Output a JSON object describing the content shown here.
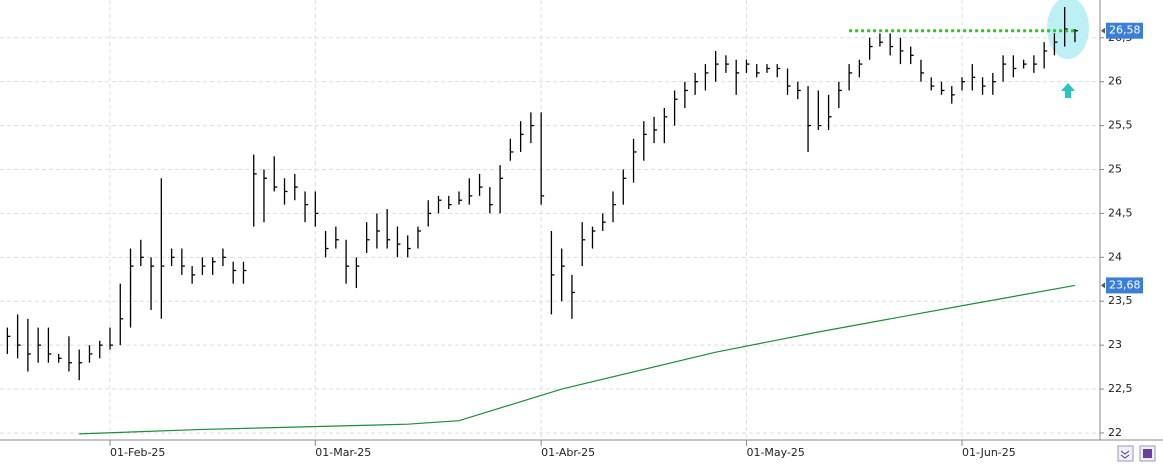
{
  "chart_data": {
    "type": "ohlc",
    "bars": [
      [
        23.3,
        22.9,
        23.0
      ],
      [
        23.2,
        22.9,
        23.1
      ],
      [
        23.35,
        22.85,
        23.0
      ],
      [
        23.3,
        22.7,
        22.9
      ],
      [
        23.2,
        22.8,
        23.0
      ],
      [
        23.2,
        22.8,
        22.9
      ],
      [
        22.9,
        22.8,
        22.85
      ],
      [
        23.1,
        22.7,
        22.8
      ],
      [
        22.95,
        22.6,
        22.8
      ],
      [
        23.0,
        22.8,
        22.9
      ],
      [
        23.05,
        22.85,
        23.0
      ],
      [
        23.2,
        22.95,
        23.0
      ],
      [
        23.7,
        23.0,
        23.3
      ],
      [
        24.1,
        23.2,
        23.9
      ],
      [
        24.2,
        23.9,
        24.0
      ],
      [
        24.0,
        23.4,
        23.9
      ],
      [
        24.9,
        23.3,
        23.9
      ],
      [
        24.1,
        23.9,
        24.0
      ],
      [
        24.1,
        23.8,
        23.9
      ],
      [
        23.9,
        23.7,
        23.8
      ],
      [
        24.0,
        23.8,
        23.9
      ],
      [
        24.0,
        23.8,
        23.95
      ],
      [
        24.1,
        23.9,
        24.0
      ],
      [
        23.95,
        23.7,
        23.85
      ],
      [
        23.95,
        23.7,
        23.85
      ],
      [
        25.17,
        24.35,
        24.95
      ],
      [
        25.0,
        24.4,
        24.9
      ],
      [
        25.15,
        24.75,
        24.8
      ],
      [
        24.9,
        24.6,
        24.75
      ],
      [
        24.95,
        24.65,
        24.8
      ],
      [
        24.75,
        24.4,
        24.6
      ],
      [
        24.75,
        24.35,
        24.5
      ],
      [
        24.3,
        24.0,
        24.1
      ],
      [
        24.35,
        24.1,
        24.2
      ],
      [
        24.2,
        23.7,
        23.9
      ],
      [
        24.0,
        23.65,
        23.9
      ],
      [
        24.4,
        24.05,
        24.2
      ],
      [
        24.5,
        24.1,
        24.3
      ],
      [
        24.55,
        24.1,
        24.2
      ],
      [
        24.35,
        24.0,
        24.15
      ],
      [
        24.25,
        24.0,
        24.1
      ],
      [
        24.35,
        24.1,
        24.3
      ],
      [
        24.65,
        24.35,
        24.5
      ],
      [
        24.7,
        24.5,
        24.65
      ],
      [
        24.7,
        24.55,
        24.6
      ],
      [
        24.75,
        24.6,
        24.65
      ],
      [
        24.9,
        24.6,
        24.7
      ],
      [
        24.95,
        24.7,
        24.8
      ],
      [
        24.8,
        24.5,
        24.6
      ],
      [
        25.05,
        24.5,
        24.9
      ],
      [
        25.35,
        25.1,
        25.2
      ],
      [
        25.55,
        25.2,
        25.4
      ],
      [
        25.65,
        25.3,
        25.5
      ],
      [
        25.65,
        24.6,
        24.7
      ],
      [
        24.3,
        23.35,
        23.8
      ],
      [
        24.1,
        23.5,
        23.9
      ],
      [
        23.8,
        23.3,
        23.6
      ],
      [
        24.4,
        23.9,
        24.2
      ],
      [
        24.35,
        24.1,
        24.3
      ],
      [
        24.5,
        24.3,
        24.4
      ],
      [
        24.75,
        24.4,
        24.6
      ],
      [
        25.0,
        24.6,
        24.9
      ],
      [
        25.35,
        24.85,
        25.2
      ],
      [
        25.55,
        25.1,
        25.4
      ],
      [
        25.6,
        25.3,
        25.45
      ],
      [
        25.7,
        25.3,
        25.6
      ],
      [
        25.9,
        25.5,
        25.8
      ],
      [
        26.0,
        25.7,
        25.9
      ],
      [
        26.1,
        25.85,
        26.0
      ],
      [
        26.2,
        25.9,
        26.1
      ],
      [
        26.35,
        26.0,
        26.2
      ],
      [
        26.3,
        26.1,
        26.2
      ],
      [
        26.25,
        25.85,
        26.1
      ],
      [
        26.25,
        26.1,
        26.2
      ],
      [
        26.2,
        26.05,
        26.1
      ],
      [
        26.2,
        26.1,
        26.15
      ],
      [
        26.2,
        26.05,
        26.15
      ],
      [
        26.15,
        25.85,
        25.95
      ],
      [
        26.0,
        25.8,
        25.9
      ],
      [
        25.95,
        25.2,
        25.5
      ],
      [
        25.9,
        25.45,
        25.5
      ],
      [
        25.85,
        25.45,
        25.6
      ],
      [
        26.0,
        25.7,
        25.9
      ],
      [
        26.2,
        25.9,
        26.1
      ],
      [
        26.25,
        26.05,
        26.2
      ],
      [
        26.5,
        26.25,
        26.4
      ],
      [
        26.55,
        26.4,
        26.45
      ],
      [
        26.55,
        26.3,
        26.4
      ],
      [
        26.5,
        26.2,
        26.35
      ],
      [
        26.4,
        26.2,
        26.3
      ],
      [
        26.25,
        26.0,
        26.1
      ],
      [
        26.05,
        25.9,
        25.95
      ],
      [
        26.0,
        25.85,
        25.9
      ],
      [
        25.95,
        25.75,
        25.85
      ],
      [
        26.05,
        25.9,
        26.0
      ],
      [
        26.2,
        25.9,
        26.05
      ],
      [
        26.05,
        25.85,
        25.95
      ],
      [
        26.1,
        25.85,
        26.0
      ],
      [
        26.3,
        26.0,
        26.2
      ],
      [
        26.3,
        26.05,
        26.15
      ],
      [
        26.25,
        26.15,
        26.2
      ],
      [
        26.3,
        26.1,
        26.2
      ],
      [
        26.45,
        26.15,
        26.35
      ],
      [
        26.55,
        26.3,
        26.45
      ],
      [
        26.85,
        26.4,
        26.6
      ],
      [
        26.6,
        26.45,
        26.58
      ]
    ],
    "bar_color": "#000000",
    "moving_average": {
      "color": "#1e8c3a",
      "x": [
        8,
        20,
        40,
        45,
        55,
        70,
        80,
        95,
        105
      ],
      "values": [
        21.99,
        22.04,
        22.1,
        22.14,
        22.5,
        22.92,
        23.15,
        23.47,
        23.68
      ]
    },
    "resistance": {
      "color": "#22cc22",
      "x": [
        83,
        105
      ],
      "value": 26.58
    },
    "last_labels": [
      {
        "value": 26.58,
        "label": "26,58"
      },
      {
        "value": 23.68,
        "label": "23,68"
      }
    ],
    "xlim": [
      0.284,
      107.44
    ],
    "xticks": [
      {
        "value": 11,
        "label": "01-Feb-25"
      },
      {
        "value": 31,
        "label": "01-Mar-25"
      },
      {
        "value": 53,
        "label": "01-Abr-25"
      },
      {
        "value": 73,
        "label": "01-May-25"
      },
      {
        "value": 94,
        "label": "01-Jun-25"
      }
    ],
    "ylim": [
      21.92,
      26.93
    ],
    "yticks": [
      22,
      {
        "value": 22.5,
        "label": "22,5"
      },
      23,
      {
        "value": 23.5,
        "label": "23,5"
      },
      24,
      {
        "value": 24.5,
        "label": "24,5"
      },
      25,
      {
        "value": 25.5,
        "label": "25,5"
      },
      26,
      {
        "value": 26.5,
        "label": "26,5"
      }
    ],
    "grid": true
  }
}
